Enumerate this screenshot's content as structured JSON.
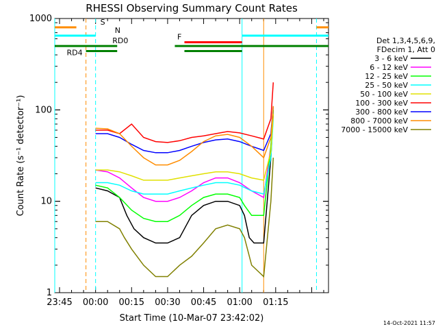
{
  "chart_data": {
    "type": "line",
    "title": "RHESSI Observing Summary Count Rates",
    "xlabel": "Start Time (10-Mar-07 23:42:02)",
    "ylabel": "Count Rate (s⁻¹ detector⁻¹)",
    "yscale": "log",
    "ylim": [
      1,
      1000
    ],
    "xlim_minutes": [
      -17,
      97
    ],
    "x_ticks": [
      {
        "label": "23:45",
        "min": -15
      },
      {
        "label": "00:00",
        "min": 0
      },
      {
        "label": "00:15",
        "min": 15
      },
      {
        "label": "00:30",
        "min": 30
      },
      {
        "label": "00:45",
        "min": 45
      },
      {
        "label": "01:00",
        "min": 60
      },
      {
        "label": "01:15",
        "min": 75
      }
    ],
    "y_ticks": [
      {
        "label": "1",
        "v": 1
      },
      {
        "label": "10",
        "v": 10
      },
      {
        "label": "100",
        "v": 100
      },
      {
        "label": "1000",
        "v": 1000
      }
    ],
    "legend_header": [
      "Det 1,3,4,5,6,9,",
      "FDecim 1, Att 0"
    ],
    "legend_placement": "right",
    "series": [
      {
        "name": "3 - 6 keV",
        "color": "#000000",
        "x": [
          0,
          5,
          10,
          13,
          16,
          20,
          25,
          30,
          35,
          40,
          45,
          50,
          55,
          60,
          62,
          64,
          66,
          70,
          73,
          74
        ],
        "y": [
          14,
          13,
          11,
          7,
          5,
          4,
          3.5,
          3.5,
          4,
          7,
          9,
          10,
          10,
          9,
          7,
          4,
          3.5,
          3.5,
          30,
          90
        ]
      },
      {
        "name": "6 - 12 keV",
        "color": "#ff00ff",
        "x": [
          0,
          5,
          10,
          15,
          20,
          25,
          30,
          35,
          40,
          45,
          50,
          55,
          60,
          65,
          70,
          73,
          74
        ],
        "y": [
          22,
          21,
          18,
          14,
          11,
          10,
          10,
          11,
          13,
          16,
          18,
          18,
          16,
          13,
          11,
          40,
          100
        ]
      },
      {
        "name": "12 - 25 keV",
        "color": "#00ff00",
        "x": [
          0,
          5,
          10,
          15,
          20,
          25,
          30,
          35,
          40,
          45,
          50,
          55,
          60,
          62,
          65,
          70,
          73,
          74
        ],
        "y": [
          15,
          14,
          11,
          8,
          6.5,
          6,
          6,
          7,
          9,
          11,
          12,
          12,
          11,
          9,
          7,
          7,
          40,
          100
        ]
      },
      {
        "name": "25 - 50 keV",
        "color": "#00ffff",
        "x": [
          0,
          5,
          10,
          15,
          20,
          25,
          30,
          35,
          40,
          45,
          50,
          55,
          60,
          65,
          70,
          73,
          74
        ],
        "y": [
          16,
          16,
          15,
          13,
          12,
          12,
          12,
          13,
          14,
          15,
          16,
          16,
          15,
          13,
          12,
          30,
          80
        ]
      },
      {
        "name": "50 - 100 keV",
        "color": "#e0e000",
        "x": [
          0,
          5,
          10,
          15,
          20,
          25,
          30,
          35,
          40,
          45,
          50,
          55,
          60,
          65,
          70,
          73,
          74
        ],
        "y": [
          22,
          22,
          21,
          19,
          17,
          17,
          17,
          18,
          19,
          20,
          21,
          21,
          20,
          18,
          17,
          35,
          90
        ]
      },
      {
        "name": "100 - 300 keV",
        "color": "#ff0000",
        "x": [
          0,
          5,
          10,
          15,
          20,
          25,
          30,
          35,
          40,
          45,
          50,
          55,
          60,
          65,
          70,
          73,
          74
        ],
        "y": [
          60,
          60,
          55,
          70,
          50,
          45,
          44,
          46,
          50,
          52,
          55,
          58,
          56,
          52,
          48,
          80,
          200
        ]
      },
      {
        "name": "300 - 800 keV",
        "color": "#0000ff",
        "x": [
          0,
          5,
          10,
          15,
          20,
          25,
          30,
          35,
          40,
          45,
          50,
          55,
          60,
          65,
          70,
          73,
          74
        ],
        "y": [
          55,
          55,
          50,
          42,
          36,
          34,
          34,
          36,
          40,
          44,
          47,
          48,
          45,
          40,
          36,
          55,
          110
        ]
      },
      {
        "name": "800 - 7000 keV",
        "color": "#ff8c00",
        "x": [
          0,
          5,
          10,
          15,
          20,
          25,
          30,
          35,
          40,
          45,
          50,
          55,
          60,
          65,
          70,
          73,
          74
        ],
        "y": [
          63,
          62,
          55,
          40,
          30,
          25,
          25,
          28,
          35,
          45,
          52,
          54,
          50,
          40,
          30,
          50,
          110
        ]
      },
      {
        "name": "7000 - 15000 keV",
        "color": "#808000",
        "x": [
          0,
          5,
          10,
          12,
          15,
          20,
          25,
          30,
          35,
          40,
          45,
          50,
          55,
          60,
          62,
          65,
          70,
          73,
          74
        ],
        "y": [
          6,
          6,
          5,
          4,
          3,
          2,
          1.5,
          1.5,
          2,
          2.5,
          3.5,
          5,
          5.5,
          5,
          4,
          2,
          1.5,
          10,
          30
        ]
      }
    ],
    "flags": [
      {
        "label": "S",
        "color": "#ff8c00",
        "y": 800,
        "segments": [
          [
            -17,
            -8
          ],
          [
            92,
            97
          ]
        ]
      },
      {
        "label": "N",
        "color": "#00ffff",
        "y": 650,
        "segments": [
          [
            -17,
            0
          ],
          [
            61,
            97
          ]
        ]
      },
      {
        "label": "F",
        "color": "#ff0000",
        "y": 550,
        "segments": [
          [
            37,
            61
          ]
        ]
      },
      {
        "label": "RD0",
        "color": "#008000",
        "y": 500,
        "segments": [
          [
            -17,
            9
          ],
          [
            33,
            97
          ]
        ]
      },
      {
        "label": "RD4",
        "color": "#008000",
        "y": 440,
        "segments": [
          [
            -4,
            9
          ],
          [
            37,
            61
          ]
        ]
      }
    ],
    "vertical_markers": [
      {
        "x": -17,
        "color": "#00ffff",
        "style": "solid"
      },
      {
        "x": -4,
        "color": "#ff8c00",
        "style": "dashed"
      },
      {
        "x": 0,
        "color": "#00ffff",
        "style": "dashed"
      },
      {
        "x": 61,
        "color": "#00ffff",
        "style": "solid"
      },
      {
        "x": 70,
        "color": "#ff8c00",
        "style": "solid"
      },
      {
        "x": 92,
        "color": "#00ffff",
        "style": "dashed"
      }
    ],
    "footer": "14-Oct-2021 11:57"
  }
}
